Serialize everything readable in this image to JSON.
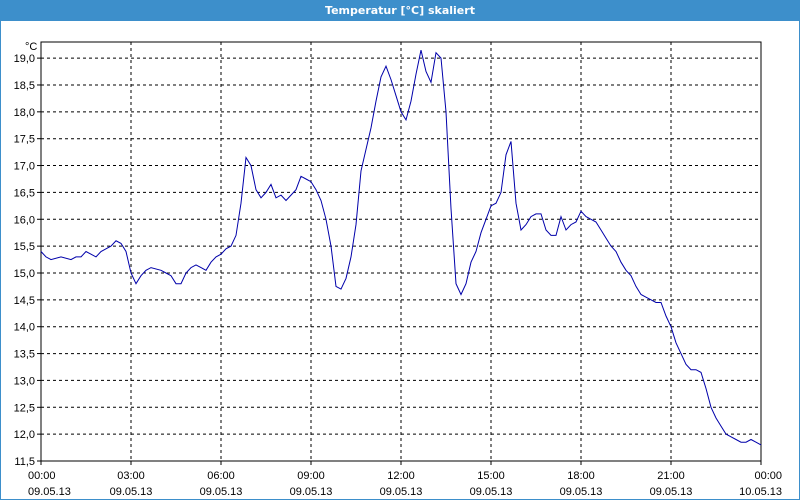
{
  "window": {
    "title": "Temperatur [°C] skaliert"
  },
  "chart_data": {
    "type": "line",
    "title": "Temperatur [°C] skaliert",
    "ylabel": "°C",
    "ylim": [
      11.5,
      19.3
    ],
    "xlim": [
      "09.05.13 00:00",
      "10.05.13 00:00"
    ],
    "grid": true,
    "line_color": "#0000aa",
    "y_ticks": [
      "11,5",
      "12,0",
      "12,5",
      "13,0",
      "13,5",
      "14,0",
      "14,5",
      "15,0",
      "15,5",
      "16,0",
      "16,5",
      "17,0",
      "17,5",
      "18,0",
      "18,5",
      "19,0"
    ],
    "x_ticks": [
      {
        "time": "00:00",
        "date": "09.05.13"
      },
      {
        "time": "03:00",
        "date": "09.05.13"
      },
      {
        "time": "06:00",
        "date": "09.05.13"
      },
      {
        "time": "09:00",
        "date": "09.05.13"
      },
      {
        "time": "12:00",
        "date": "09.05.13"
      },
      {
        "time": "15:00",
        "date": "09.05.13"
      },
      {
        "time": "18:00",
        "date": "09.05.13"
      },
      {
        "time": "21:00",
        "date": "09.05.13"
      },
      {
        "time": "00:00",
        "date": "10.05.13"
      }
    ],
    "series": [
      {
        "x": [
          "00:00",
          "00:10",
          "00:20",
          "00:40",
          "01:00",
          "01:10",
          "01:20",
          "01:30",
          "01:40",
          "01:50",
          "02:00",
          "02:10",
          "02:20",
          "02:30",
          "02:40",
          "02:50",
          "03:00",
          "03:10",
          "03:20",
          "03:30",
          "03:40",
          "04:00",
          "04:10",
          "04:20",
          "04:30",
          "04:40",
          "04:50",
          "05:00",
          "05:10",
          "05:20",
          "05:30",
          "05:40",
          "05:50",
          "06:00",
          "06:10",
          "06:20",
          "06:30",
          "06:40",
          "06:50",
          "07:00",
          "07:10",
          "07:20",
          "07:30",
          "07:40",
          "07:50",
          "08:00",
          "08:10",
          "08:20",
          "08:30",
          "08:40",
          "08:50",
          "09:00",
          "09:10",
          "09:20",
          "09:30",
          "09:40",
          "09:50",
          "10:00",
          "10:10",
          "10:20",
          "10:30",
          "10:40",
          "10:50",
          "11:00",
          "11:10",
          "11:20",
          "11:30",
          "11:40",
          "11:50",
          "12:00",
          "12:10",
          "12:20",
          "12:30",
          "12:40",
          "12:50",
          "13:00",
          "13:10",
          "13:20",
          "13:30",
          "13:40",
          "13:50",
          "14:00",
          "14:10",
          "14:20",
          "14:30",
          "14:40",
          "14:50",
          "15:00",
          "15:10",
          "15:20",
          "15:30",
          "15:40",
          "15:50",
          "16:00",
          "16:10",
          "16:20",
          "16:30",
          "16:40",
          "16:50",
          "17:00",
          "17:10",
          "17:20",
          "17:30",
          "17:40",
          "17:50",
          "18:00",
          "18:10",
          "18:20",
          "18:30",
          "18:40",
          "18:50",
          "19:00",
          "19:10",
          "19:20",
          "19:30",
          "19:40",
          "19:50",
          "20:00",
          "20:10",
          "20:20",
          "20:30",
          "20:40",
          "20:50",
          "21:00",
          "21:10",
          "21:20",
          "21:30",
          "21:40",
          "21:50",
          "22:00",
          "22:10",
          "22:20",
          "22:30",
          "22:40",
          "22:50",
          "23:00",
          "23:10",
          "23:20",
          "23:30",
          "23:40",
          "23:50",
          "24:00"
        ],
        "y": [
          15.4,
          15.3,
          15.25,
          15.3,
          15.25,
          15.3,
          15.3,
          15.4,
          15.35,
          15.3,
          15.4,
          15.45,
          15.5,
          15.6,
          15.55,
          15.4,
          15.0,
          14.8,
          14.95,
          15.05,
          15.1,
          15.05,
          15.0,
          14.95,
          14.8,
          14.8,
          15.0,
          15.1,
          15.15,
          15.1,
          15.05,
          15.2,
          15.3,
          15.35,
          15.45,
          15.5,
          15.7,
          16.3,
          17.15,
          17.0,
          16.55,
          16.4,
          16.5,
          16.65,
          16.4,
          16.45,
          16.35,
          16.45,
          16.55,
          16.8,
          16.75,
          16.7,
          16.55,
          16.35,
          16.0,
          15.5,
          14.75,
          14.7,
          14.9,
          15.3,
          15.9,
          16.9,
          17.3,
          17.7,
          18.2,
          18.65,
          18.85,
          18.6,
          18.3,
          18.0,
          17.85,
          18.2,
          18.7,
          19.15,
          18.75,
          18.55,
          19.1,
          19.0,
          18.0,
          16.2,
          14.8,
          14.6,
          14.8,
          15.2,
          15.4,
          15.75,
          16.0,
          16.25,
          16.3,
          16.5,
          17.2,
          17.45,
          16.3,
          15.8,
          15.9,
          16.05,
          16.1,
          16.1,
          15.8,
          15.7,
          15.7,
          16.05,
          15.8,
          15.9,
          15.95,
          16.15,
          16.05,
          16.0,
          15.95,
          15.8,
          15.65,
          15.5,
          15.4,
          15.2,
          15.05,
          14.95,
          14.75,
          14.6,
          14.55,
          14.5,
          14.45,
          14.45,
          14.2,
          14.0,
          13.7,
          13.5,
          13.3,
          13.2,
          13.2,
          13.15,
          12.85,
          12.5,
          12.3,
          12.15,
          12.0,
          11.95,
          11.9,
          11.85,
          11.85,
          11.9,
          11.85,
          11.8
        ]
      }
    ]
  }
}
